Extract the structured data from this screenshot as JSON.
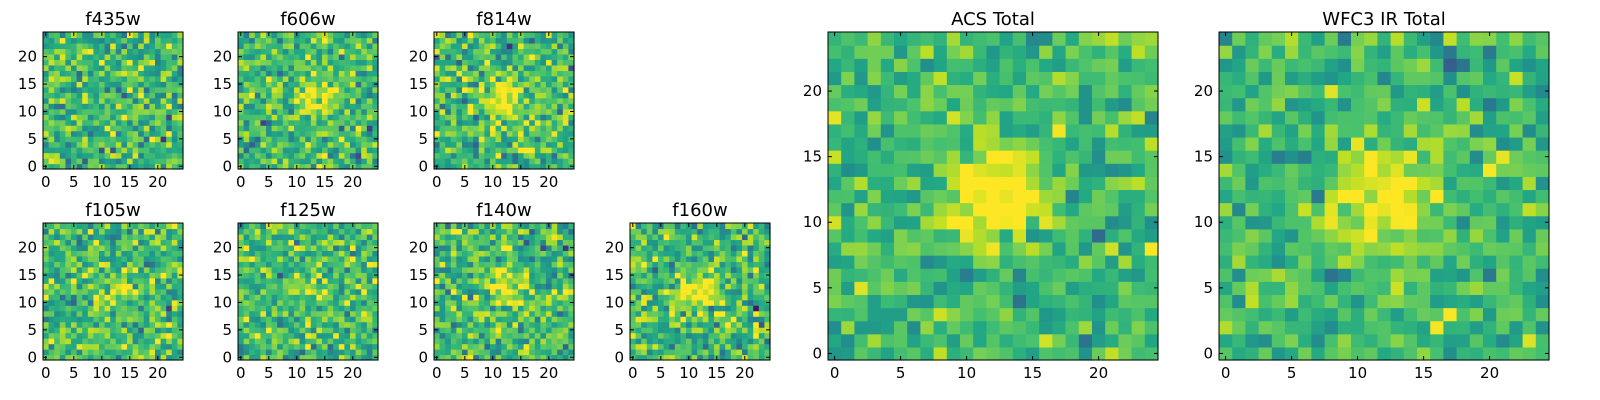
{
  "figure": {
    "background": "#ffffff",
    "colormap": "viridis"
  },
  "chart_data": [
    {
      "type": "heatmap",
      "title": "f435w",
      "grid_size": 25,
      "xlim": [
        0,
        24
      ],
      "ylim": [
        0,
        24
      ],
      "x_ticks": [
        0,
        5,
        10,
        15,
        20
      ],
      "y_ticks": [
        0,
        5,
        10,
        15,
        20
      ],
      "source_center": null,
      "source_strength": 0.0,
      "noise_level": 0.3,
      "pixel_bins": 25,
      "grid": false
    },
    {
      "type": "heatmap",
      "title": "f606w",
      "grid_size": 25,
      "xlim": [
        0,
        24
      ],
      "ylim": [
        0,
        24
      ],
      "x_ticks": [
        0,
        5,
        10,
        15,
        20
      ],
      "y_ticks": [
        0,
        5,
        10,
        15,
        20
      ],
      "source_center": [
        13,
        13
      ],
      "source_strength": 0.35,
      "noise_level": 0.3,
      "pixel_bins": 25,
      "grid": false
    },
    {
      "type": "heatmap",
      "title": "f814w",
      "grid_size": 25,
      "xlim": [
        0,
        24
      ],
      "ylim": [
        0,
        24
      ],
      "x_ticks": [
        0,
        5,
        10,
        15,
        20
      ],
      "y_ticks": [
        0,
        5,
        10,
        15,
        20
      ],
      "source_center": [
        12,
        12
      ],
      "source_strength": 0.45,
      "noise_level": 0.33,
      "pixel_bins": 25,
      "grid": false
    },
    {
      "type": "heatmap",
      "title": "f105w",
      "grid_size": 25,
      "xlim": [
        0,
        24
      ],
      "ylim": [
        0,
        24
      ],
      "x_ticks": [
        0,
        5,
        10,
        15,
        20
      ],
      "y_ticks": [
        0,
        5,
        10,
        15,
        20
      ],
      "source_center": [
        12,
        12
      ],
      "source_strength": 0.2,
      "noise_level": 0.3,
      "pixel_bins": 25,
      "grid": false
    },
    {
      "type": "heatmap",
      "title": "f125w",
      "grid_size": 25,
      "xlim": [
        0,
        24
      ],
      "ylim": [
        0,
        24
      ],
      "x_ticks": [
        0,
        5,
        10,
        15,
        20
      ],
      "y_ticks": [
        0,
        5,
        10,
        15,
        20
      ],
      "source_center": [
        12,
        12
      ],
      "source_strength": 0.15,
      "noise_level": 0.3,
      "pixel_bins": 25,
      "grid": false
    },
    {
      "type": "heatmap",
      "title": "f140w",
      "grid_size": 25,
      "xlim": [
        0,
        24
      ],
      "ylim": [
        0,
        24
      ],
      "x_ticks": [
        0,
        5,
        10,
        15,
        20
      ],
      "y_ticks": [
        0,
        5,
        10,
        15,
        20
      ],
      "source_center": [
        13,
        13
      ],
      "source_strength": 0.3,
      "noise_level": 0.3,
      "pixel_bins": 25,
      "grid": false
    },
    {
      "type": "heatmap",
      "title": "f160w",
      "grid_size": 25,
      "xlim": [
        0,
        24
      ],
      "ylim": [
        0,
        24
      ],
      "x_ticks": [
        0,
        5,
        10,
        15,
        20
      ],
      "y_ticks": [
        0,
        5,
        10,
        15,
        20
      ],
      "source_center": [
        12,
        12
      ],
      "source_strength": 0.4,
      "noise_level": 0.3,
      "pixel_bins": 25,
      "grid": false
    },
    {
      "type": "heatmap",
      "title": "ACS Total",
      "grid_size": 25,
      "xlim": [
        0,
        24
      ],
      "ylim": [
        0,
        24
      ],
      "x_ticks": [
        0,
        5,
        10,
        15,
        20
      ],
      "y_ticks": [
        0,
        5,
        10,
        15,
        20
      ],
      "source_center": [
        12,
        12
      ],
      "source_strength": 0.5,
      "noise_level": 0.22,
      "pixel_bins": 25,
      "grid": false
    },
    {
      "type": "heatmap",
      "title": "WFC3 IR Total",
      "grid_size": 25,
      "xlim": [
        0,
        24
      ],
      "ylim": [
        0,
        24
      ],
      "x_ticks": [
        0,
        5,
        10,
        15,
        20
      ],
      "y_ticks": [
        0,
        5,
        10,
        15,
        20
      ],
      "source_center": [
        12,
        12
      ],
      "source_strength": 0.45,
      "noise_level": 0.22,
      "pixel_bins": 25,
      "grid": false
    }
  ]
}
